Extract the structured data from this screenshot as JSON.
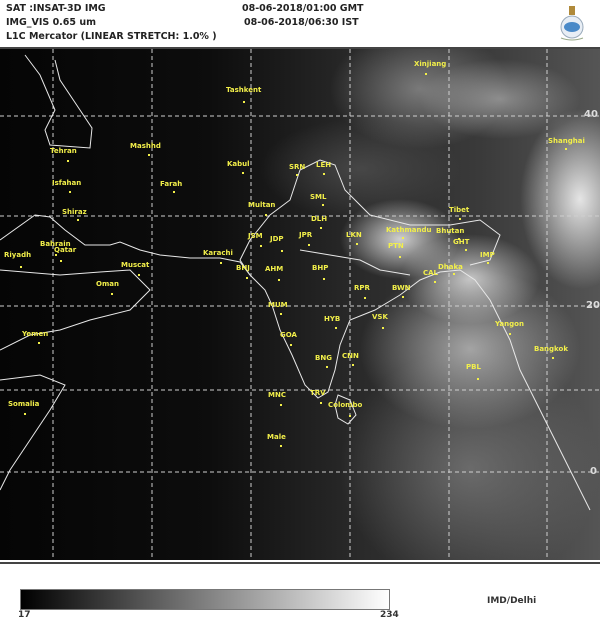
{
  "header": {
    "satellite": "SAT :INSAT-3D IMG",
    "channel": "IMG_VIS 0.65 um",
    "projection": "L1C Mercator (LINEAR STRETCH: 1.0% )",
    "time_gmt": "08-06-2018/01:00 GMT",
    "time_ist": "08-06-2018/06:30 IST",
    "emblem_icon": "imd-emblem-icon"
  },
  "map": {
    "latitude_labels": [
      "40",
      "20",
      "0"
    ],
    "places": [
      {
        "name": "Xinjiang"
      },
      {
        "name": "Tashkent"
      },
      {
        "name": "Tehran"
      },
      {
        "name": "Mashhd"
      },
      {
        "name": "Kabul"
      },
      {
        "name": "SRN"
      },
      {
        "name": "LEH"
      },
      {
        "name": "Farah"
      },
      {
        "name": "Isfahan"
      },
      {
        "name": "Multan"
      },
      {
        "name": "SML"
      },
      {
        "name": "DLH"
      },
      {
        "name": "Shiraz"
      },
      {
        "name": "Tibet"
      },
      {
        "name": "Kathmandu"
      },
      {
        "name": "Bhutan"
      },
      {
        "name": "Shanghai"
      },
      {
        "name": "JSM"
      },
      {
        "name": "JDP"
      },
      {
        "name": "JPR"
      },
      {
        "name": "LKN"
      },
      {
        "name": "PTN"
      },
      {
        "name": "GHT"
      },
      {
        "name": "IMP"
      },
      {
        "name": "Bahrain"
      },
      {
        "name": "Qatar"
      },
      {
        "name": "Riyadh"
      },
      {
        "name": "Karachi"
      },
      {
        "name": "Muscat"
      },
      {
        "name": "Dhaka"
      },
      {
        "name": "BHJ"
      },
      {
        "name": "AHM"
      },
      {
        "name": "BHP"
      },
      {
        "name": "CAL"
      },
      {
        "name": "Oman"
      },
      {
        "name": "RPR"
      },
      {
        "name": "BWN"
      },
      {
        "name": "MUM"
      },
      {
        "name": "HYB"
      },
      {
        "name": "VSK"
      },
      {
        "name": "Yangon"
      },
      {
        "name": "GOA"
      },
      {
        "name": "Yemen"
      },
      {
        "name": "BNG"
      },
      {
        "name": "CNN"
      },
      {
        "name": "Bangkok"
      },
      {
        "name": "PBL"
      },
      {
        "name": "MNC"
      },
      {
        "name": "TRV"
      },
      {
        "name": "Colombo"
      },
      {
        "name": "Somalia"
      },
      {
        "name": "Male"
      }
    ],
    "label_color": "#f2ef4a"
  },
  "colorbar": {
    "min_label": "17",
    "max_label": "234",
    "credit": "IMD/Delhi"
  }
}
